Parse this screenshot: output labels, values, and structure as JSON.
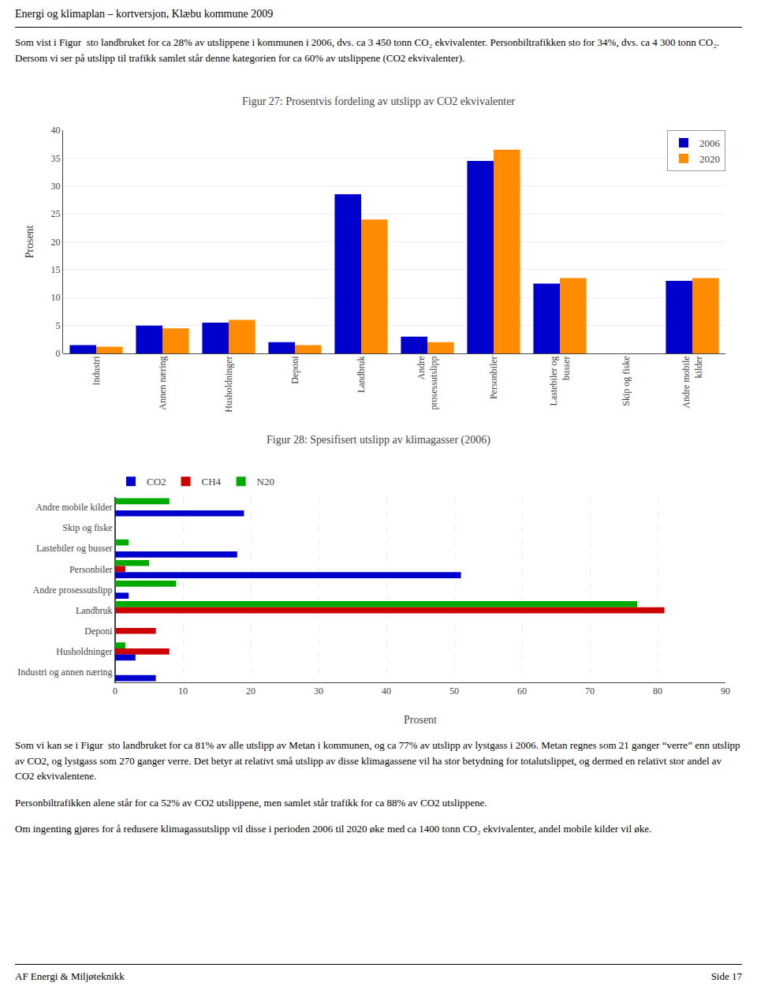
{
  "page_title": "Energi og klimaplan – kortversjon, Klæbu kommune 2009",
  "paragraphs": [
    "Som vist i Figur  sto landbruket for ca 28% av utslippene i kommunen i 2006, dvs. ca 3 450 tonn CO₂ ekvivalenter. Personbiltrafikken sto for 34%, dvs. ca 4 300 tonn CO₂. Dersom vi ser på utslipp til trafikk samlet står denne kategorien for ca 60% av utslippene (CO2 ekvivalenter).",
    "Som vi kan se i Figur  sto landbruket for ca 81% av alle utslipp av Metan i kommunen, og ca 77% av utslipp av lystgass i 2006. Metan regnes som 21 ganger “verre” enn utslipp av CO2, og lystgass som 270 ganger verre. Det betyr at relativt små utslipp av disse klimagassene vil ha stor betydning for totalutslippet, og dermed en relativt stor andel av CO2 ekvivalentene.",
    "Personbiltrafikken alene står for ca 52% av CO2 utslippene, men samlet står trafikk for ca 88% av CO2 utslippene.",
    "Om ingenting gjøres for å redusere klimagassutslipp vil disse i perioden 2006 til 2020 øke med ca 1400 tonn CO₂ ekvivalenter, andel mobile kilder vil øke."
  ],
  "footer_left": "AF Energi & Miljøteknikk",
  "footer_right": "Side 17",
  "chart_data": [
    {
      "type": "bar",
      "title": "Figur 27: Prosentvis fordeling av utslipp av CO2 ekvivalenter",
      "ylabel": "Prosent",
      "categories": [
        "Industri",
        "Annen næring",
        "Husholdninger",
        "Deponi",
        "Landbruk",
        "Andre\nprosessutslipp",
        "Personbiler",
        "Lastebiler og\nbusser",
        "Skip og fiske",
        "Andre mobile\nkilder"
      ],
      "series": [
        {
          "name": "2006",
          "color": "#0000CC",
          "values": [
            1.5,
            5.0,
            5.5,
            2.0,
            28.5,
            3.0,
            34.5,
            12.5,
            0.0,
            13.0
          ]
        },
        {
          "name": "2020",
          "color": "#FF8C00",
          "values": [
            1.2,
            4.5,
            6.0,
            1.5,
            24.0,
            2.0,
            36.5,
            13.5,
            0.0,
            13.5
          ]
        }
      ],
      "ylim": [
        0,
        40
      ],
      "yticks": [
        0,
        5,
        10,
        15,
        20,
        25,
        30,
        35,
        40
      ],
      "grid": true,
      "legend": "upper right"
    },
    {
      "type": "bar",
      "orientation": "horizontal",
      "title": "Figur 28: Spesifisert utslipp av klimagasser (2006)",
      "xlabel": "Prosent",
      "categories": [
        "Andre mobile kilder",
        "Skip og fiske",
        "Lastebiler og busser",
        "Personbiler",
        "Andre prosessutslipp",
        "Landbruk",
        "Deponi",
        "Husholdninger",
        "Industri og annen næring"
      ],
      "series": [
        {
          "name": "CO2",
          "color": "#0000CC",
          "values": [
            19.0,
            0.0,
            18.0,
            51.0,
            2.0,
            0.0,
            0.0,
            3.0,
            6.0
          ]
        },
        {
          "name": "CH4",
          "color": "#CC0000",
          "values": [
            0.0,
            0.0,
            0.0,
            1.5,
            0.0,
            81.0,
            6.0,
            8.0,
            0.0
          ]
        },
        {
          "name": "N20",
          "color": "#00AA00",
          "values": [
            8.0,
            0.0,
            2.0,
            5.0,
            9.0,
            77.0,
            0.0,
            1.5,
            0.0
          ]
        }
      ],
      "xlim": [
        0,
        90
      ],
      "xticks": [
        0,
        10,
        20,
        30,
        40,
        50,
        60,
        70,
        80,
        90
      ],
      "grid": true,
      "legend": "upper left"
    }
  ]
}
